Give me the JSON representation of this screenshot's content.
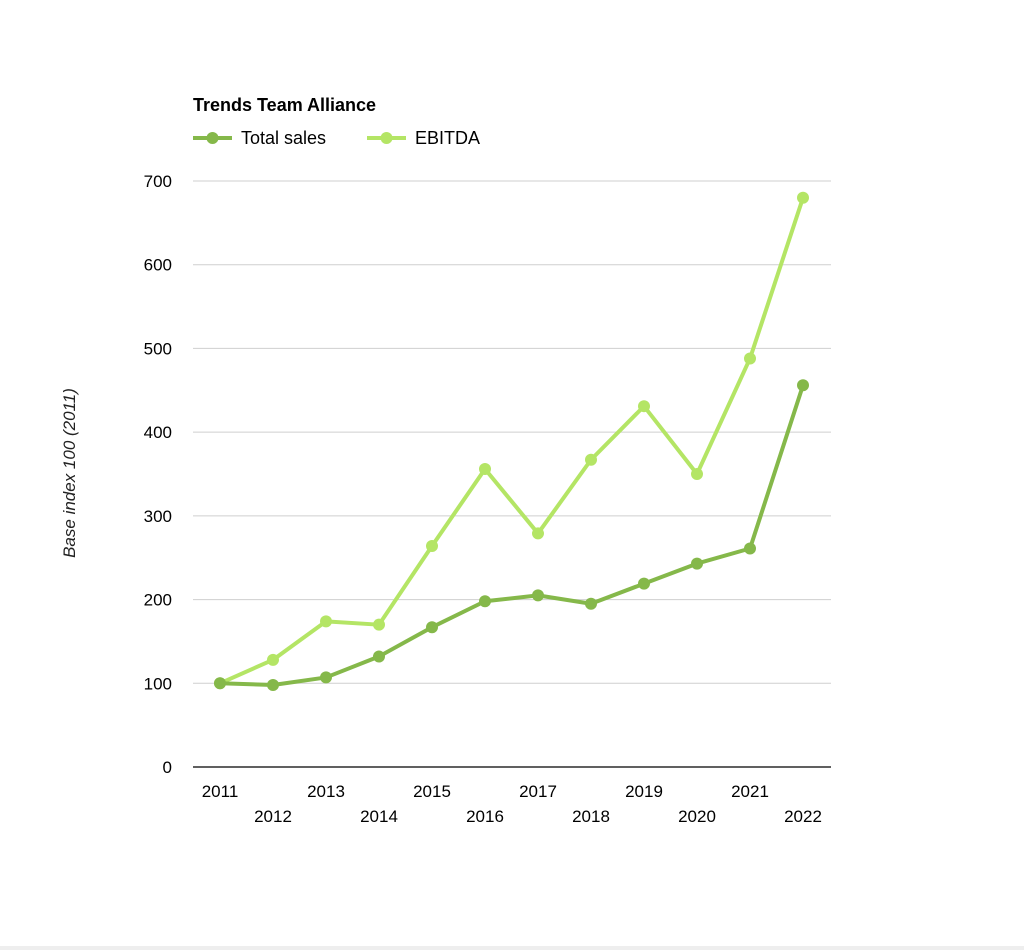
{
  "chart_data": {
    "type": "line",
    "title": "Trends Team Alliance",
    "xlabel": "",
    "ylabel": "Base index 100 (2011)",
    "categories": [
      "2011",
      "2012",
      "2013",
      "2014",
      "2015",
      "2016",
      "2017",
      "2018",
      "2019",
      "2020",
      "2021",
      "2022"
    ],
    "y_ticks": [
      "0",
      "100",
      "200",
      "300",
      "400",
      "500",
      "600",
      "700"
    ],
    "ylim": [
      0,
      700
    ],
    "grid": true,
    "legend_position": "top-left",
    "series": [
      {
        "name": "Total sales",
        "color": "#85b84a",
        "values": [
          100,
          98,
          107,
          132,
          167,
          198,
          205,
          195,
          219,
          243,
          261,
          456
        ]
      },
      {
        "name": "EBITDA",
        "color": "#b4e565",
        "values": [
          100,
          128,
          174,
          170,
          264,
          356,
          279,
          367,
          431,
          350,
          488,
          680
        ]
      }
    ]
  }
}
